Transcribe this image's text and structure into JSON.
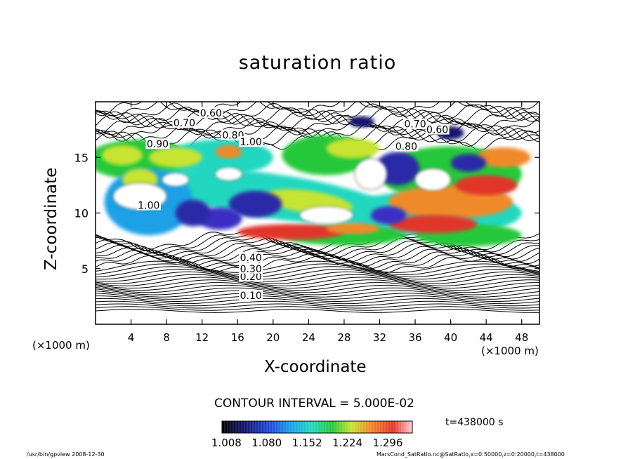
{
  "chart_data": {
    "type": "heatmap",
    "title": "saturation ratio",
    "xlabel": "X-coordinate",
    "ylabel": "Z-coordinate",
    "x_unit": "(×1000 m)",
    "x_ticks": [
      4,
      8,
      12,
      16,
      20,
      24,
      28,
      32,
      36,
      40,
      44,
      48
    ],
    "y_ticks": [
      5,
      10,
      15
    ],
    "xlim": [
      0,
      50
    ],
    "ylim": [
      0,
      20
    ],
    "contour_interval": "CONTOUR INTERVAL = 5.000E-02",
    "contour_labels": [
      {
        "text": "0.10",
        "x": 17.5,
        "z": 2.6
      },
      {
        "text": "0.20",
        "x": 17.5,
        "z": 4.3
      },
      {
        "text": "0.30",
        "x": 17.5,
        "z": 5.0
      },
      {
        "text": "0.40",
        "x": 17.5,
        "z": 6.0
      },
      {
        "text": "0.60",
        "x": 13.0,
        "z": 19.0
      },
      {
        "text": "0.70",
        "x": 10.0,
        "z": 18.1
      },
      {
        "text": "0.70",
        "x": 36.0,
        "z": 18.0
      },
      {
        "text": "0.80",
        "x": 35.0,
        "z": 16.0
      },
      {
        "text": "0.80",
        "x": 15.5,
        "z": 17.0
      },
      {
        "text": "0.90",
        "x": 7.0,
        "z": 16.2
      },
      {
        "text": "0.60",
        "x": 38.5,
        "z": 17.5
      },
      {
        "text": "1.00",
        "x": 6.0,
        "z": 10.7
      },
      {
        "text": "1.00",
        "x": 17.5,
        "z": 16.4
      }
    ],
    "colorbar": {
      "tick_labels": [
        "1.008",
        "1.080",
        "1.152",
        "1.224",
        "1.296"
      ],
      "min": 1.0,
      "max": 1.34
    },
    "time_label": "t=438000 s"
  },
  "footer": {
    "left": "/usr/bin/gpview   2008-12-30",
    "right": "MarsCond_SatRatio.nc@SatRatio,x=0:50000,z=0:20000,t=438000"
  }
}
